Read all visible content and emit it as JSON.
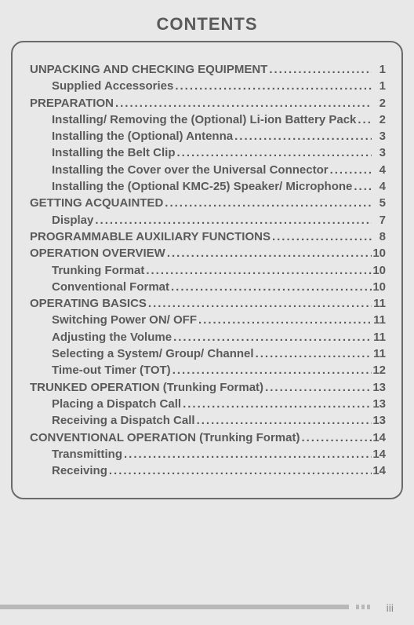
{
  "title": "CONTENTS",
  "page_number": "iii",
  "colors": {
    "background": "#e8e8e8",
    "text": "#5a5a5a",
    "border": "#6a6a6a",
    "footer_bar": "#b8b8b8",
    "page_num": "#8a8a8a"
  },
  "typography": {
    "title_fontsize": 22,
    "line_fontsize": 15,
    "font_weight": "bold",
    "font_family": "Arial"
  },
  "toc": [
    {
      "label": "UNPACKING AND CHECKING EQUIPMENT",
      "page": "1",
      "level": 0
    },
    {
      "label": "Supplied Accessories",
      "page": "1",
      "level": 1
    },
    {
      "label": "PREPARATION",
      "page": "2",
      "level": 0
    },
    {
      "label": "Installing/ Removing the (Optional) Li-ion Battery Pack",
      "page": "2",
      "level": 1
    },
    {
      "label": "Installing the (Optional) Antenna",
      "page": "3",
      "level": 1
    },
    {
      "label": "Installing the Belt Clip",
      "page": "3",
      "level": 1
    },
    {
      "label": "Installing the Cover over the Universal Connector",
      "page": "4",
      "level": 1
    },
    {
      "label": "Installing the (Optional KMC-25) Speaker/ Microphone",
      "page": "4",
      "level": 1
    },
    {
      "label": "GETTING ACQUAINTED",
      "page": "5",
      "level": 0
    },
    {
      "label": "Display",
      "page": "7",
      "level": 1
    },
    {
      "label": "PROGRAMMABLE AUXILIARY FUNCTIONS",
      "page": "8",
      "level": 0
    },
    {
      "label": "OPERATION OVERVIEW",
      "page": "10",
      "level": 0
    },
    {
      "label": "Trunking Format",
      "page": "10",
      "level": 1
    },
    {
      "label": "Conventional Format",
      "page": "10",
      "level": 1
    },
    {
      "label": "OPERATING BASICS",
      "page": "11",
      "level": 0
    },
    {
      "label": "Switching Power ON/ OFF",
      "page": "11",
      "level": 1
    },
    {
      "label": "Adjusting the Volume",
      "page": "11",
      "level": 1
    },
    {
      "label": "Selecting a System/ Group/ Channel",
      "page": "11",
      "level": 1
    },
    {
      "label": "Time-out Timer (TOT)",
      "page": "12",
      "level": 1
    },
    {
      "label": "TRUNKED OPERATION (Trunking Format)",
      "page": "13",
      "level": 0
    },
    {
      "label": "Placing a Dispatch Call",
      "page": "13",
      "level": 1
    },
    {
      "label": "Receiving a Dispatch Call",
      "page": "13",
      "level": 1
    },
    {
      "label": "CONVENTIONAL OPERATION (Trunking Format)",
      "page": "14",
      "level": 0
    },
    {
      "label": "Transmitting",
      "page": "14",
      "level": 1
    },
    {
      "label": "Receiving",
      "page": "14",
      "level": 1
    }
  ]
}
